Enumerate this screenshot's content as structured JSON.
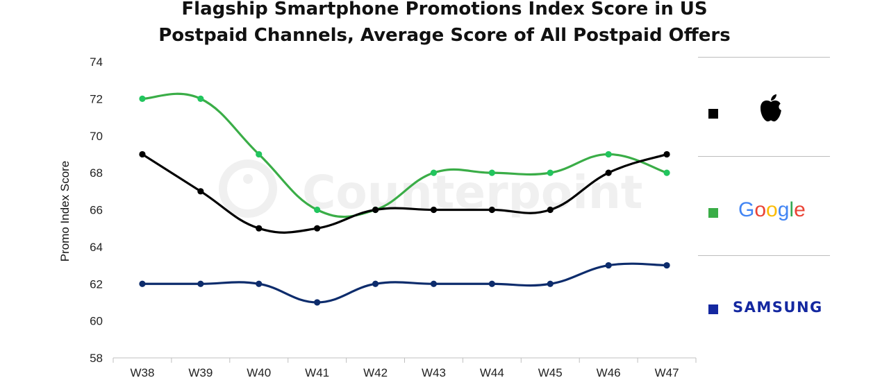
{
  "chart_data": {
    "type": "line",
    "title_line1": "Flagship Smartphone Promotions Index Score in US",
    "title_line2": "Postpaid Channels, Average Score of All Postpaid Offers",
    "ylabel": "Promo Index Score",
    "xlabel": "",
    "categories": [
      "W38",
      "W39",
      "W40",
      "W41",
      "W42",
      "W43",
      "W44",
      "W45",
      "W46",
      "W47"
    ],
    "ylim": [
      58,
      74
    ],
    "yticks": [
      58,
      60,
      62,
      64,
      66,
      68,
      70,
      72,
      74
    ],
    "grid": false,
    "legend_position": "right",
    "watermark": "Counterpoint",
    "series": [
      {
        "key": "apple",
        "color": "#000000",
        "values": [
          69,
          67,
          65,
          65,
          66,
          66,
          66,
          66,
          68,
          69
        ]
      },
      {
        "key": "google",
        "color": "#3aad47",
        "point_color": "#22c55e",
        "values": [
          72,
          72,
          69,
          66,
          66,
          68,
          68,
          68,
          69,
          68
        ]
      },
      {
        "key": "samsung",
        "color": "#0d2c6c",
        "values": [
          62,
          62,
          62,
          61,
          62,
          62,
          62,
          62,
          63,
          63
        ]
      }
    ]
  },
  "legend": {
    "apple": {
      "icon": "apple-logo",
      "swatch_color": "#000000"
    },
    "google": {
      "label": "Google",
      "swatch_color": "#3aad47",
      "letter_colors": [
        "#4285F4",
        "#EA4335",
        "#FBBC05",
        "#4285F4",
        "#34A853",
        "#EA4335"
      ]
    },
    "samsung": {
      "label": "SAMSUNG",
      "swatch_color": "#1428a0"
    }
  }
}
